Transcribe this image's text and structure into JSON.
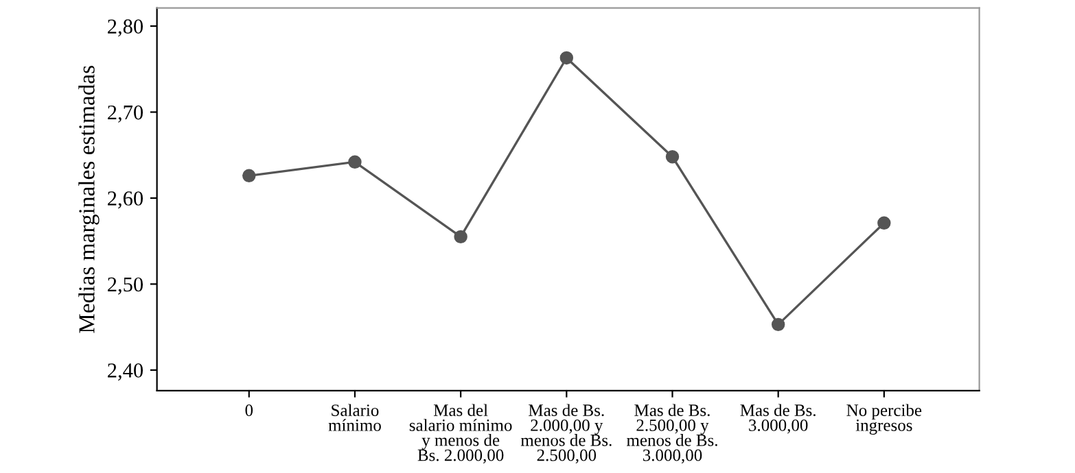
{
  "chart_data": {
    "type": "line",
    "ylabel": "Medias marginales estimadas",
    "categories": [
      "0",
      "Salario\nmínimo",
      "Mas del\nsalario mínimo\ny menos de\nBs. 2.000,00",
      "Mas de Bs.\n2.000,00 y\nmenos de Bs.\n2.500,00",
      "Mas de Bs.\n2.500,00 y\nmenos de Bs.\n3.000,00",
      "Mas de Bs.\n3.000,00",
      "No percibe\ningresos"
    ],
    "series": [
      {
        "color": "#555555",
        "values": [
          2.626,
          2.642,
          2.555,
          2.763,
          2.648,
          2.453,
          2.571
        ]
      }
    ],
    "ylim": [
      2.376,
      2.821
    ],
    "yticks": [
      {
        "value": 2.4,
        "label": "2,40"
      },
      {
        "value": 2.5,
        "label": "2,50"
      },
      {
        "value": 2.6,
        "label": "2,60"
      },
      {
        "value": 2.7,
        "label": "2,70"
      },
      {
        "value": 2.8,
        "label": "2,80"
      }
    ],
    "marker": "circle",
    "line_style": "solid"
  }
}
